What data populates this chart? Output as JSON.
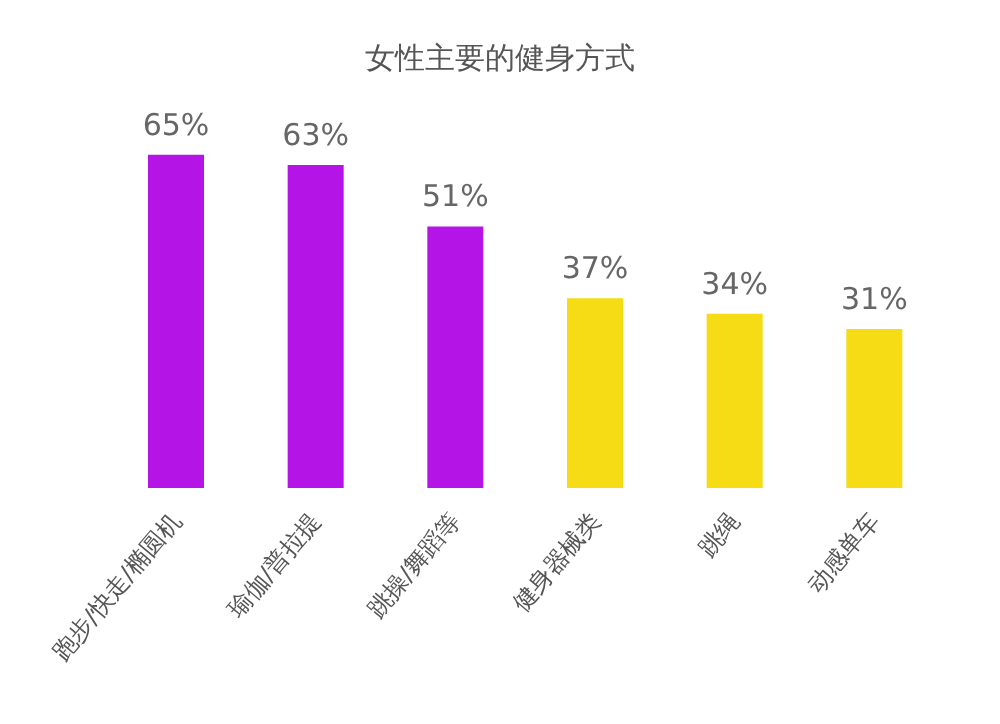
{
  "chart_data": {
    "type": "bar",
    "title": "女性主要的健身方式",
    "categories": [
      "跑步/快走/椭圆机",
      "瑜伽/普拉提",
      "跳操/舞蹈等",
      "健身器械类",
      "跳绳",
      "动感单车"
    ],
    "values": [
      65,
      63,
      51,
      37,
      34,
      31
    ],
    "colors": [
      "#b414e6",
      "#b414e6",
      "#b414e6",
      "#f5dc14",
      "#f5dc14",
      "#f5dc14"
    ],
    "value_labels": [
      "65%",
      "63%",
      "51%",
      "37%",
      "34%",
      "31%"
    ],
    "grid": false
  }
}
